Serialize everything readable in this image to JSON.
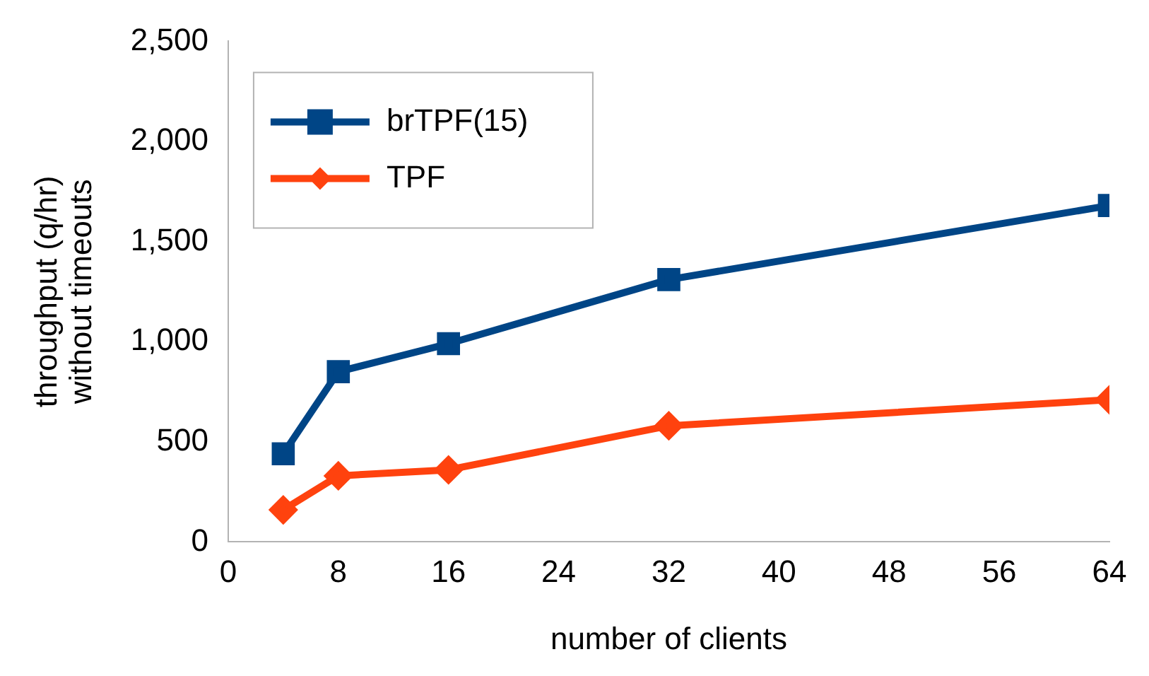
{
  "chart_data": {
    "type": "line",
    "xlabel": "number of clients",
    "ylabel": "throughput (q/hr)\nwithout timeouts",
    "x": [
      4,
      8,
      16,
      32,
      64
    ],
    "series": [
      {
        "name": "brTPF(15)",
        "color": "#004586",
        "marker": "square",
        "values": [
          440,
          850,
          990,
          1310,
          1680
        ]
      },
      {
        "name": "TPF",
        "color": "#ff420e",
        "marker": "diamond",
        "values": [
          160,
          330,
          360,
          580,
          710
        ]
      }
    ],
    "xlim": [
      0,
      64
    ],
    "xticks": [
      0,
      8,
      16,
      24,
      32,
      40,
      48,
      56,
      64
    ],
    "ylim": [
      0,
      2500
    ],
    "yticks": [
      0,
      500,
      {
        "value": 1000,
        "label": "1,000"
      },
      {
        "value": 1500,
        "label": "1,500"
      },
      {
        "value": 2000,
        "label": "2,000"
      },
      {
        "value": 2500,
        "label": "2,500"
      }
    ],
    "grid": false,
    "legend": "top left",
    "line_style": "solid"
  }
}
